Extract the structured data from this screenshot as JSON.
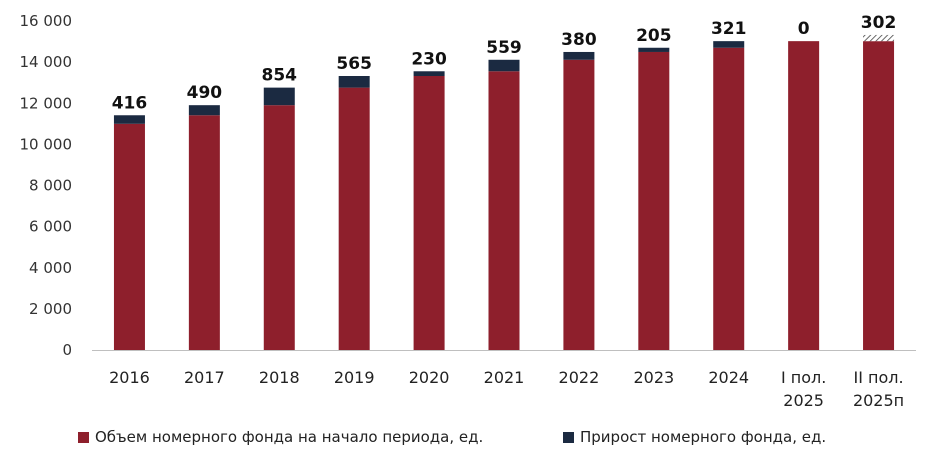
{
  "chart_data": {
    "type": "bar",
    "stacked": true,
    "categories": [
      [
        "2016"
      ],
      [
        "2017"
      ],
      [
        "2018"
      ],
      [
        "2019"
      ],
      [
        "2020"
      ],
      [
        "2021"
      ],
      [
        "2022"
      ],
      [
        "2023"
      ],
      [
        "2024"
      ],
      [
        "I пол.",
        "2025"
      ],
      [
        "II пол.",
        "2025п"
      ]
    ],
    "series": [
      {
        "name": "Объем номерного фонда на начало периода, ед.",
        "color": "#8e1f2c",
        "values": [
          11000,
          11416,
          11906,
          12760,
          13325,
          13555,
          14114,
          14494,
          14699,
          15020,
          15020
        ]
      },
      {
        "name": "Прирост номерного фонда, ед.",
        "color": "#1b2a41",
        "values": [
          416,
          490,
          854,
          565,
          230,
          559,
          380,
          205,
          321,
          0,
          302
        ],
        "labels": [
          "416",
          "490",
          "854",
          "565",
          "230",
          "559",
          "380",
          "205",
          "321",
          "0",
          "302"
        ],
        "forecast_index": 10
      }
    ],
    "ylim": [
      0,
      16000
    ],
    "yticks": [
      0,
      2000,
      4000,
      6000,
      8000,
      10000,
      12000,
      14000,
      16000
    ],
    "ytick_labels": [
      "0",
      "2 000",
      "4 000",
      "6 000",
      "8 000",
      "10 000",
      "12 000",
      "14 000",
      "16 000"
    ],
    "grid": false,
    "legend_position": "bottom"
  }
}
